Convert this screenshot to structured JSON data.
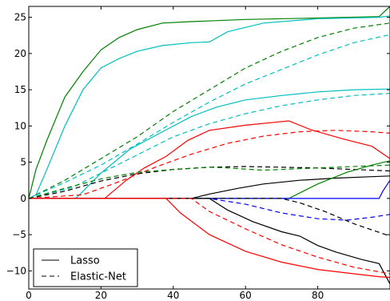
{
  "chart_data": {
    "type": "line",
    "title": "",
    "xlabel": "",
    "ylabel": "",
    "xlim": [
      0,
      100
    ],
    "ylim": [
      -12.5,
      26.5
    ],
    "xticks": [
      0,
      20,
      40,
      60,
      80
    ],
    "yticks": [
      -10,
      -5,
      0,
      5,
      10,
      15,
      20,
      25
    ],
    "grid": false,
    "legend": {
      "placement": "lower-left",
      "entries": [
        {
          "label": "Lasso",
          "dash": "solid"
        },
        {
          "label": "Elastic-Net",
          "dash": "dashed"
        }
      ]
    },
    "series": [
      {
        "model": "Lasso",
        "color": "#008000",
        "dash": "solid",
        "points": [
          [
            0,
            0
          ],
          [
            2,
            4
          ],
          [
            5,
            8
          ],
          [
            10,
            14
          ],
          [
            15,
            17.5
          ],
          [
            20,
            20.5
          ],
          [
            25,
            22.2
          ],
          [
            30,
            23.3
          ],
          [
            37,
            24.2
          ],
          [
            45,
            24.4
          ],
          [
            60,
            24.7
          ],
          [
            80,
            24.9
          ],
          [
            97,
            25.1
          ],
          [
            100,
            26.5
          ]
        ]
      },
      {
        "model": "Lasso",
        "color": "#00bfbf",
        "dash": "solid",
        "points": [
          [
            0,
            0
          ],
          [
            2,
            0.5
          ],
          [
            5,
            4
          ],
          [
            10,
            10
          ],
          [
            15,
            15
          ],
          [
            20,
            18
          ],
          [
            25,
            19.3
          ],
          [
            30,
            20.3
          ],
          [
            37,
            21.1
          ],
          [
            45,
            21.5
          ],
          [
            50,
            21.6
          ],
          [
            55,
            23
          ],
          [
            65,
            24.2
          ],
          [
            80,
            24.8
          ],
          [
            97,
            25.0
          ],
          [
            100,
            25.2
          ]
        ]
      },
      {
        "model": "Elastic-Net",
        "color": "#008000",
        "dash": "dashed",
        "points": [
          [
            0,
            0
          ],
          [
            10,
            2.5
          ],
          [
            20,
            5.5
          ],
          [
            30,
            8.5
          ],
          [
            40,
            12
          ],
          [
            50,
            15
          ],
          [
            60,
            18
          ],
          [
            70,
            20.3
          ],
          [
            80,
            22.2
          ],
          [
            90,
            23.5
          ],
          [
            100,
            24.2
          ]
        ]
      },
      {
        "model": "Elastic-Net",
        "color": "#00bfbf",
        "dash": "dashed",
        "points": [
          [
            0,
            0
          ],
          [
            10,
            2.2
          ],
          [
            20,
            4.6
          ],
          [
            30,
            7.5
          ],
          [
            40,
            10.5
          ],
          [
            50,
            13.3
          ],
          [
            60,
            15.8
          ],
          [
            70,
            17.8
          ],
          [
            80,
            19.8
          ],
          [
            90,
            21.5
          ],
          [
            100,
            22.6
          ]
        ]
      },
      {
        "model": "Lasso",
        "color": "#00bfbf",
        "dash": "solid",
        "points": [
          [
            0,
            0
          ],
          [
            13,
            0
          ],
          [
            20,
            3.5
          ],
          [
            28,
            6.8
          ],
          [
            37,
            9.2
          ],
          [
            45,
            11.3
          ],
          [
            52,
            12.6
          ],
          [
            60,
            13.6
          ],
          [
            70,
            14.2
          ],
          [
            80,
            14.7
          ],
          [
            90,
            15.0
          ],
          [
            100,
            15.1
          ]
        ]
      },
      {
        "model": "Elastic-Net",
        "color": "#00bfbf",
        "dash": "dashed",
        "points": [
          [
            0,
            0
          ],
          [
            12,
            1.5
          ],
          [
            20,
            3.5
          ],
          [
            30,
            6
          ],
          [
            40,
            8.5
          ],
          [
            50,
            10.3
          ],
          [
            60,
            11.7
          ],
          [
            70,
            12.8
          ],
          [
            80,
            13.6
          ],
          [
            90,
            14.2
          ],
          [
            100,
            14.5
          ]
        ]
      },
      {
        "model": "Lasso",
        "color": "#ff0000",
        "dash": "solid",
        "points": [
          [
            0,
            0
          ],
          [
            21,
            0
          ],
          [
            27,
            2.5
          ],
          [
            32,
            4.2
          ],
          [
            38,
            5.8
          ],
          [
            44,
            8
          ],
          [
            50,
            9.4
          ],
          [
            60,
            10.1
          ],
          [
            68,
            10.5
          ],
          [
            72,
            10.7
          ],
          [
            78,
            9.5
          ],
          [
            87,
            8.2
          ],
          [
            95,
            7.2
          ],
          [
            100,
            5.5
          ]
        ]
      },
      {
        "model": "Elastic-Net",
        "color": "#ff0000",
        "dash": "dashed",
        "points": [
          [
            0,
            0
          ],
          [
            15,
            0.5
          ],
          [
            25,
            2.3
          ],
          [
            35,
            4.3
          ],
          [
            45,
            6.1
          ],
          [
            55,
            7.6
          ],
          [
            65,
            8.6
          ],
          [
            75,
            9.2
          ],
          [
            85,
            9.4
          ],
          [
            95,
            9.2
          ],
          [
            100,
            9.0
          ]
        ]
      },
      {
        "model": "Lasso",
        "color": "#000000",
        "dash": "solid",
        "points": [
          [
            0,
            0
          ],
          [
            45,
            0
          ],
          [
            50,
            0.6
          ],
          [
            58,
            1.4
          ],
          [
            65,
            2.0
          ],
          [
            75,
            2.5
          ],
          [
            85,
            2.8
          ],
          [
            95,
            3.0
          ],
          [
            100,
            3.1
          ]
        ]
      },
      {
        "model": "Elastic-Net",
        "color": "#000000",
        "dash": "dashed",
        "points": [
          [
            0,
            0
          ],
          [
            10,
            1
          ],
          [
            20,
            2.4
          ],
          [
            30,
            3.4
          ],
          [
            40,
            4.0
          ],
          [
            50,
            4.3
          ],
          [
            60,
            4.4
          ],
          [
            70,
            4.3
          ],
          [
            80,
            4.2
          ],
          [
            90,
            4.0
          ],
          [
            100,
            3.8
          ]
        ]
      },
      {
        "model": "Elastic-Net",
        "color": "#008000",
        "dash": "dashed",
        "points": [
          [
            0,
            0
          ],
          [
            10,
            1.4
          ],
          [
            20,
            2.7
          ],
          [
            30,
            3.6
          ],
          [
            40,
            4.0
          ],
          [
            50,
            4.3
          ],
          [
            55,
            4.2
          ],
          [
            65,
            3.9
          ],
          [
            75,
            4.1
          ],
          [
            85,
            4.3
          ],
          [
            100,
            4.6
          ]
        ]
      },
      {
        "model": "Lasso",
        "color": "#008000",
        "dash": "solid",
        "points": [
          [
            0,
            0
          ],
          [
            72,
            0
          ],
          [
            80,
            2
          ],
          [
            88,
            3.6
          ],
          [
            95,
            4.6
          ],
          [
            100,
            5.2
          ]
        ]
      },
      {
        "model": "Lasso",
        "color": "#0000ff",
        "dash": "solid",
        "points": [
          [
            0,
            0
          ],
          [
            97,
            0
          ],
          [
            98,
            1
          ],
          [
            100,
            2.5
          ]
        ]
      },
      {
        "model": "Elastic-Net",
        "color": "#0000ff",
        "dash": "dashed",
        "points": [
          [
            0,
            0
          ],
          [
            50,
            0
          ],
          [
            60,
            -0.8
          ],
          [
            70,
            -2.0
          ],
          [
            80,
            -2.8
          ],
          [
            88,
            -3.0
          ],
          [
            95,
            -2.6
          ],
          [
            100,
            -2.2
          ]
        ]
      },
      {
        "model": "Elastic-Net",
        "color": "#000000",
        "dash": "dashed",
        "points": [
          [
            0,
            0
          ],
          [
            70,
            0
          ],
          [
            75,
            -0.6
          ],
          [
            82,
            -1.8
          ],
          [
            90,
            -3.5
          ],
          [
            100,
            -5.2
          ]
        ]
      },
      {
        "model": "Lasso",
        "color": "#000000",
        "dash": "solid",
        "points": [
          [
            0,
            0
          ],
          [
            50,
            0
          ],
          [
            55,
            -1.6
          ],
          [
            62,
            -3.2
          ],
          [
            70,
            -4.6
          ],
          [
            75,
            -5.2
          ],
          [
            80,
            -6.5
          ],
          [
            85,
            -7.4
          ],
          [
            92,
            -8.4
          ],
          [
            97,
            -9.0
          ],
          [
            100,
            -11.8
          ]
        ]
      },
      {
        "model": "Elastic-Net",
        "color": "#ff0000",
        "dash": "dashed",
        "points": [
          [
            0,
            0
          ],
          [
            45,
            0
          ],
          [
            50,
            -1.8
          ],
          [
            60,
            -4.2
          ],
          [
            70,
            -6.4
          ],
          [
            80,
            -8.1
          ],
          [
            90,
            -9.5
          ],
          [
            100,
            -10.4
          ]
        ]
      },
      {
        "model": "Lasso",
        "color": "#ff0000",
        "dash": "solid",
        "points": [
          [
            0,
            0
          ],
          [
            38,
            0
          ],
          [
            42,
            -2
          ],
          [
            50,
            -5
          ],
          [
            60,
            -7.3
          ],
          [
            70,
            -8.8
          ],
          [
            80,
            -9.8
          ],
          [
            90,
            -10.4
          ],
          [
            97,
            -10.8
          ],
          [
            100,
            -10.9
          ]
        ]
      }
    ]
  }
}
